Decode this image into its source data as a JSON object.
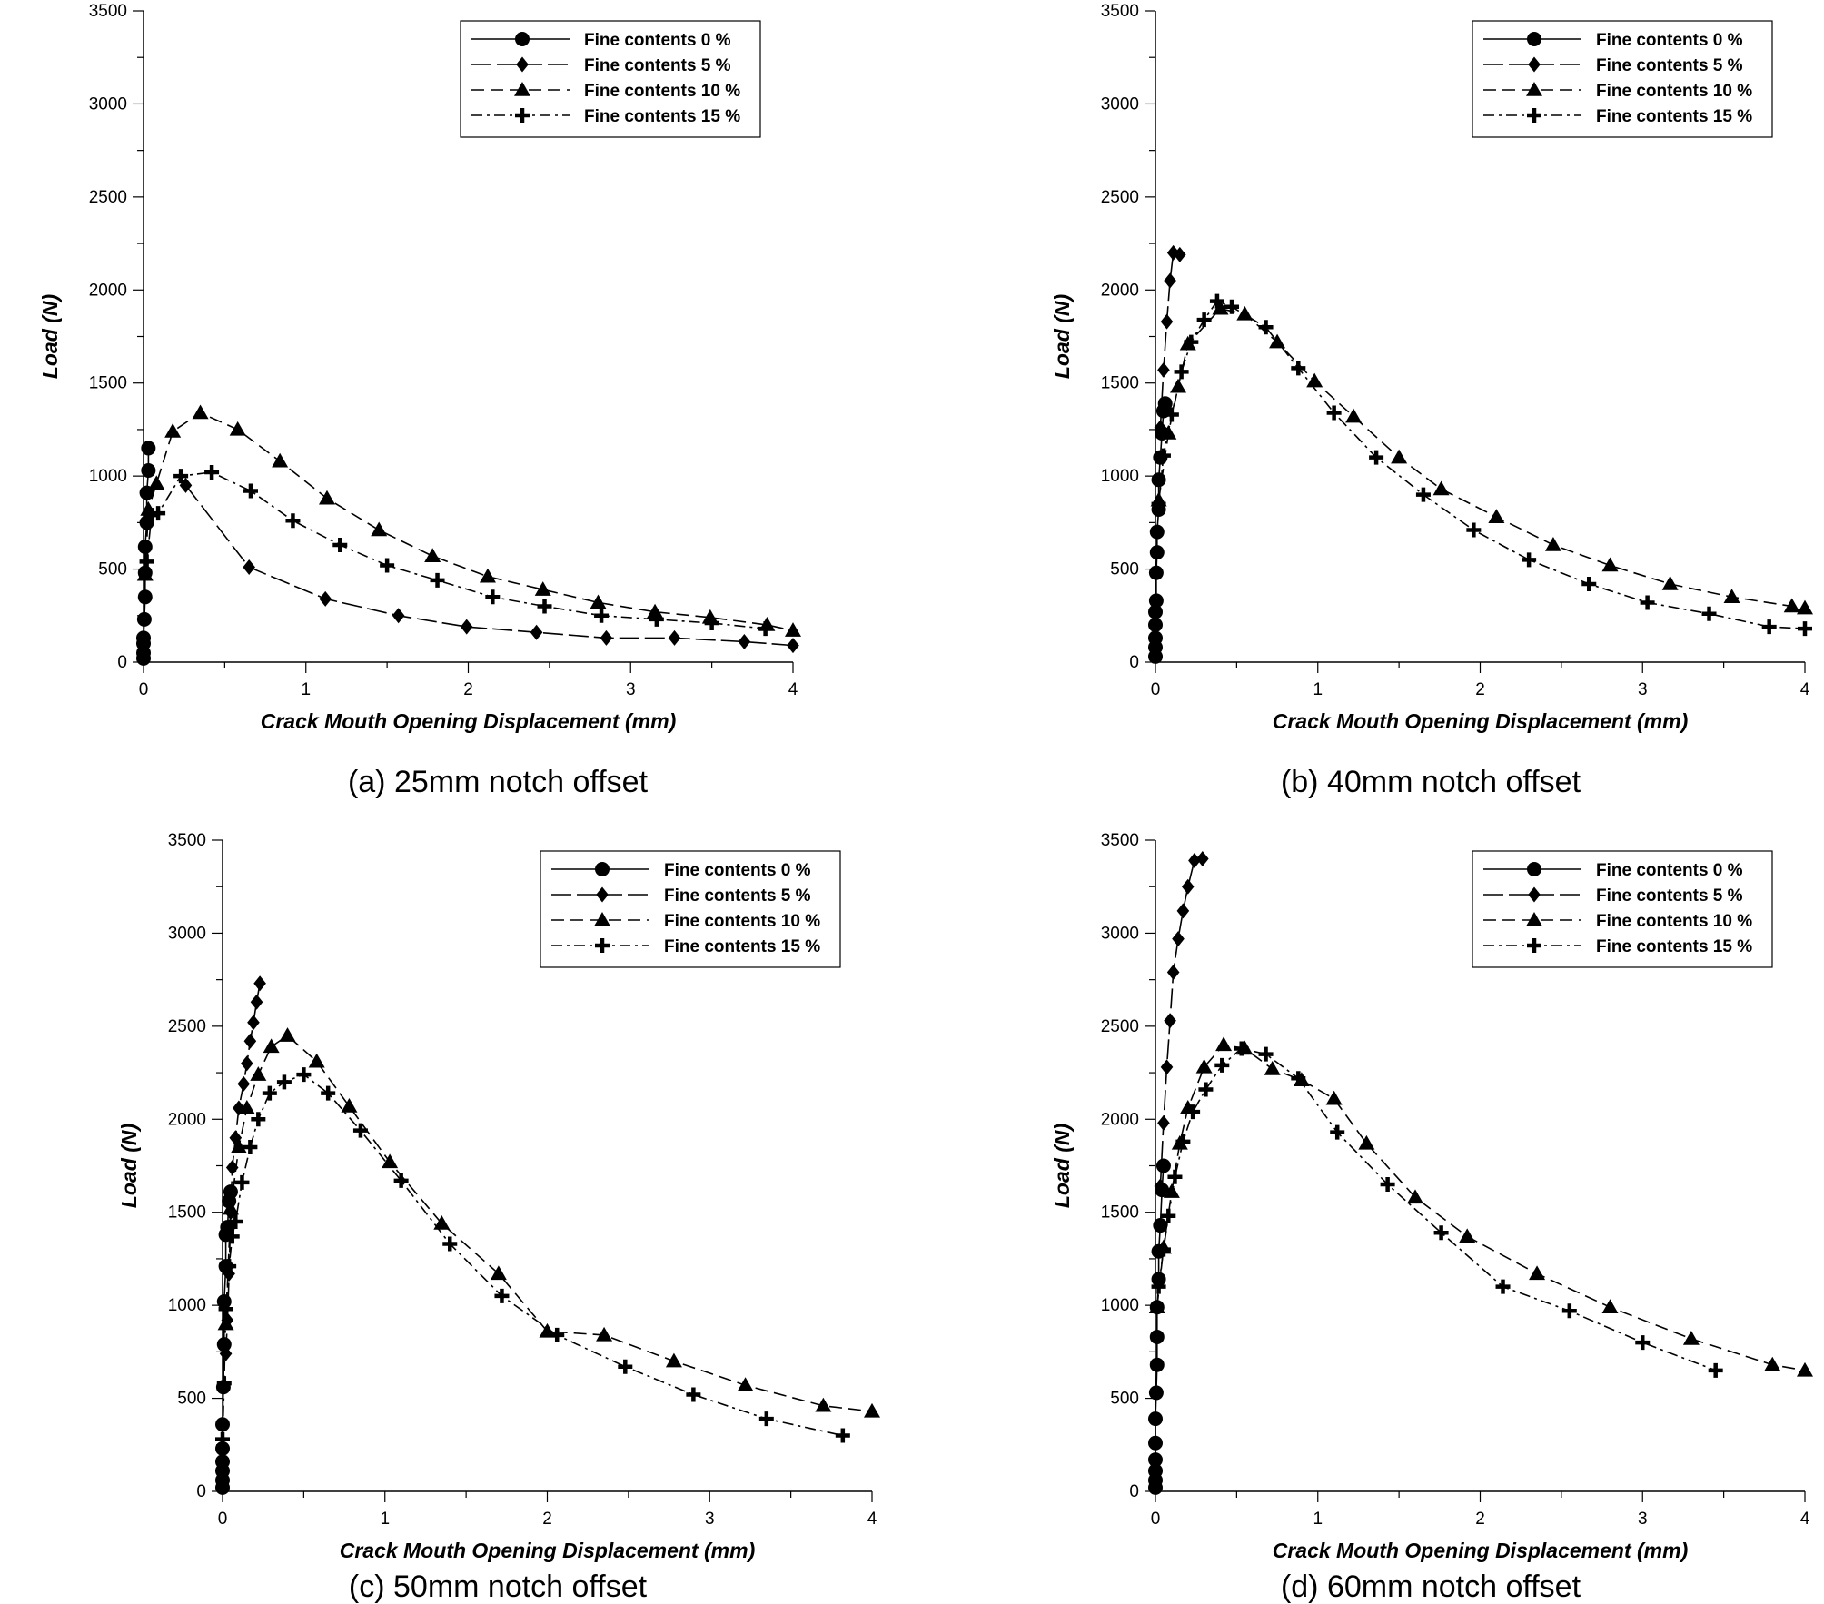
{
  "chart_data": [
    {
      "type": "scatter",
      "caption": "(a) 25mm notch offset",
      "xlabel": "Crack Mouth Opening Displacement (mm)",
      "ylabel": "Load (N)",
      "xlim": [
        0,
        4
      ],
      "ylim": [
        0,
        3500
      ],
      "xticks": [
        0,
        1,
        2,
        3,
        4
      ],
      "yticks": [
        0,
        500,
        1000,
        1500,
        2000,
        2500,
        3000,
        3500
      ],
      "legend_position": "top-right",
      "grid": false,
      "series": [
        {
          "name": "Fine contents 0 %",
          "marker": "circle",
          "line": "solid",
          "x": [
            0,
            0,
            0,
            0,
            0.005,
            0.01,
            0.01,
            0.01,
            0.02,
            0.02,
            0.03,
            0.03
          ],
          "y": [
            20,
            50,
            100,
            130,
            230,
            350,
            480,
            620,
            750,
            910,
            1030,
            1150
          ]
        },
        {
          "name": "Fine contents 5 %",
          "marker": "diamond",
          "line": "long-dash",
          "x": [
            0.26,
            0.65,
            1.12,
            1.57,
            1.99,
            2.42,
            2.85,
            3.27,
            3.7,
            4.0
          ],
          "y": [
            950,
            510,
            340,
            250,
            190,
            160,
            130,
            130,
            110,
            90
          ]
        },
        {
          "name": "Fine contents 10 %",
          "marker": "triangle",
          "line": "medium-dash",
          "x": [
            0.01,
            0.03,
            0.08,
            0.18,
            0.35,
            0.58,
            0.84,
            1.13,
            1.45,
            1.78,
            2.12,
            2.46,
            2.8,
            3.15,
            3.49,
            3.84,
            4.0
          ],
          "y": [
            470,
            820,
            960,
            1240,
            1340,
            1250,
            1080,
            880,
            710,
            570,
            460,
            390,
            320,
            270,
            240,
            200,
            170
          ]
        },
        {
          "name": "Fine contents 15 %",
          "marker": "plus",
          "line": "dash-dot",
          "x": [
            0.02,
            0.05,
            0.09,
            0.23,
            0.42,
            0.66,
            0.92,
            1.21,
            1.5,
            1.81,
            2.15,
            2.47,
            2.82,
            3.16,
            3.5,
            3.83
          ],
          "y": [
            540,
            790,
            800,
            1000,
            1020,
            920,
            760,
            630,
            520,
            440,
            350,
            300,
            250,
            230,
            210,
            180
          ]
        }
      ]
    },
    {
      "type": "scatter",
      "caption": "(b) 40mm notch offset",
      "xlabel": "Crack Mouth Opening Displacement (mm)",
      "ylabel": "Load (N)",
      "xlim": [
        0,
        4
      ],
      "ylim": [
        0,
        3500
      ],
      "xticks": [
        0,
        1,
        2,
        3,
        4
      ],
      "yticks": [
        0,
        500,
        1000,
        1500,
        2000,
        2500,
        3000,
        3500
      ],
      "legend_position": "top-right",
      "grid": false,
      "series": [
        {
          "name": "Fine contents 0 %",
          "marker": "circle",
          "line": "solid",
          "x": [
            0,
            0,
            0,
            0,
            0,
            0.005,
            0.005,
            0.01,
            0.01,
            0.02,
            0.02,
            0.03,
            0.04,
            0.05,
            0.06
          ],
          "y": [
            30,
            80,
            130,
            200,
            270,
            330,
            480,
            590,
            700,
            820,
            980,
            1100,
            1230,
            1350,
            1390
          ]
        },
        {
          "name": "Fine contents 5 %",
          "marker": "diamond",
          "line": "long-dash",
          "x": [
            0.03,
            0.05,
            0.07,
            0.09,
            0.11,
            0.15
          ],
          "y": [
            1260,
            1570,
            1830,
            2050,
            2200,
            2190
          ]
        },
        {
          "name": "Fine contents 10 %",
          "marker": "triangle",
          "line": "medium-dash",
          "x": [
            0.02,
            0.08,
            0.14,
            0.2,
            0.4,
            0.55,
            0.75,
            0.98,
            1.22,
            1.5,
            1.76,
            2.1,
            2.45,
            2.8,
            3.17,
            3.55,
            3.92,
            4.0
          ],
          "y": [
            870,
            1230,
            1480,
            1710,
            1900,
            1870,
            1720,
            1510,
            1320,
            1100,
            930,
            780,
            630,
            520,
            420,
            350,
            300,
            290
          ]
        },
        {
          "name": "Fine contents 15 %",
          "marker": "plus",
          "line": "dash-dot",
          "x": [
            0.02,
            0.05,
            0.1,
            0.16,
            0.22,
            0.3,
            0.38,
            0.47,
            0.68,
            0.88,
            1.1,
            1.36,
            1.65,
            1.96,
            2.3,
            2.67,
            3.03,
            3.41,
            3.78,
            4.0
          ],
          "y": [
            850,
            1110,
            1330,
            1560,
            1720,
            1840,
            1940,
            1910,
            1800,
            1580,
            1340,
            1100,
            900,
            710,
            550,
            420,
            320,
            260,
            190,
            180
          ]
        }
      ]
    },
    {
      "type": "scatter",
      "caption": "(c) 50mm notch offset",
      "xlabel": "Crack Mouth Opening Displacement (mm)",
      "ylabel": "Load (N)",
      "xlim": [
        0,
        4
      ],
      "ylim": [
        0,
        3500
      ],
      "xticks": [
        0,
        1,
        2,
        3,
        4
      ],
      "yticks": [
        0,
        500,
        1000,
        1500,
        2000,
        2500,
        3000,
        3500
      ],
      "legend_position": "top-right",
      "grid": false,
      "series": [
        {
          "name": "Fine contents 0 %",
          "marker": "circle",
          "line": "solid",
          "x": [
            0,
            0,
            0,
            0,
            0,
            0,
            0.005,
            0.01,
            0.01,
            0.02,
            0.02,
            0.03,
            0.04,
            0.05
          ],
          "y": [
            20,
            60,
            110,
            160,
            230,
            360,
            560,
            790,
            1020,
            1210,
            1380,
            1420,
            1560,
            1610
          ]
        },
        {
          "name": "Fine contents 5 %",
          "marker": "diamond",
          "line": "long-dash",
          "x": [
            0.02,
            0.03,
            0.04,
            0.05,
            0.06,
            0.08,
            0.1,
            0.13,
            0.15,
            0.17,
            0.19,
            0.21,
            0.23
          ],
          "y": [
            740,
            920,
            1170,
            1500,
            1740,
            1900,
            2060,
            2190,
            2300,
            2420,
            2520,
            2630,
            2730
          ]
        },
        {
          "name": "Fine contents 10 %",
          "marker": "triangle",
          "line": "medium-dash",
          "x": [
            0.02,
            0.05,
            0.1,
            0.15,
            0.22,
            0.3,
            0.4,
            0.58,
            0.78,
            1.03,
            1.35,
            1.7,
            2.0,
            2.35,
            2.78,
            3.22,
            3.7,
            4.0
          ],
          "y": [
            900,
            1520,
            1850,
            2060,
            2240,
            2390,
            2450,
            2310,
            2070,
            1770,
            1440,
            1170,
            860,
            840,
            700,
            570,
            460,
            430
          ]
        },
        {
          "name": "Fine contents 15 %",
          "marker": "plus",
          "line": "dash-dot",
          "x": [
            0,
            0.01,
            0.02,
            0.04,
            0.06,
            0.08,
            0.12,
            0.17,
            0.22,
            0.29,
            0.38,
            0.5,
            0.65,
            0.85,
            1.1,
            1.4,
            1.72,
            2.06,
            2.48,
            2.9,
            3.35,
            3.82
          ],
          "y": [
            280,
            580,
            980,
            1210,
            1370,
            1450,
            1660,
            1850,
            2000,
            2140,
            2200,
            2240,
            2140,
            1940,
            1670,
            1330,
            1050,
            840,
            670,
            520,
            390,
            300
          ]
        }
      ]
    },
    {
      "type": "scatter",
      "caption": "(d) 60mm notch offset",
      "xlabel": "Crack Mouth Opening Displacement (mm)",
      "ylabel": "Load (N)",
      "xlim": [
        0,
        4
      ],
      "ylim": [
        0,
        3500
      ],
      "xticks": [
        0,
        1,
        2,
        3,
        4
      ],
      "yticks": [
        0,
        500,
        1000,
        1500,
        2000,
        2500,
        3000,
        3500
      ],
      "legend_position": "top-right",
      "grid": false,
      "series": [
        {
          "name": "Fine contents 0 %",
          "marker": "circle",
          "line": "solid",
          "x": [
            0,
            0,
            0,
            0,
            0,
            0,
            0.005,
            0.01,
            0.01,
            0.01,
            0.02,
            0.02,
            0.03,
            0.04,
            0.05
          ],
          "y": [
            20,
            60,
            110,
            170,
            260,
            390,
            530,
            680,
            830,
            990,
            1140,
            1290,
            1430,
            1620,
            1750
          ]
        },
        {
          "name": "Fine contents 5 %",
          "marker": "diamond",
          "line": "long-dash",
          "x": [
            0.03,
            0.05,
            0.07,
            0.09,
            0.11,
            0.14,
            0.17,
            0.2,
            0.24,
            0.29
          ],
          "y": [
            1640,
            1980,
            2280,
            2530,
            2790,
            2970,
            3120,
            3250,
            3390,
            3400
          ]
        },
        {
          "name": "Fine contents 10 %",
          "marker": "triangle",
          "line": "medium-dash",
          "x": [
            0.01,
            0.05,
            0.1,
            0.15,
            0.2,
            0.3,
            0.42,
            0.55,
            0.72,
            0.9,
            1.1,
            1.3,
            1.6,
            1.92,
            2.35,
            2.8,
            3.3,
            3.8,
            4.0
          ],
          "y": [
            990,
            1310,
            1610,
            1870,
            2060,
            2280,
            2400,
            2380,
            2270,
            2210,
            2110,
            1870,
            1580,
            1370,
            1170,
            990,
            820,
            680,
            650
          ]
        },
        {
          "name": "Fine contents 15 %",
          "marker": "plus",
          "line": "dash-dot",
          "x": [
            0.02,
            0.05,
            0.08,
            0.12,
            0.17,
            0.23,
            0.31,
            0.41,
            0.53,
            0.68,
            0.88,
            1.12,
            1.43,
            1.76,
            2.14,
            2.55,
            3.0,
            3.45
          ],
          "y": [
            1100,
            1300,
            1480,
            1690,
            1880,
            2040,
            2160,
            2290,
            2380,
            2350,
            2220,
            1930,
            1650,
            1390,
            1100,
            970,
            800,
            650
          ]
        }
      ]
    }
  ]
}
